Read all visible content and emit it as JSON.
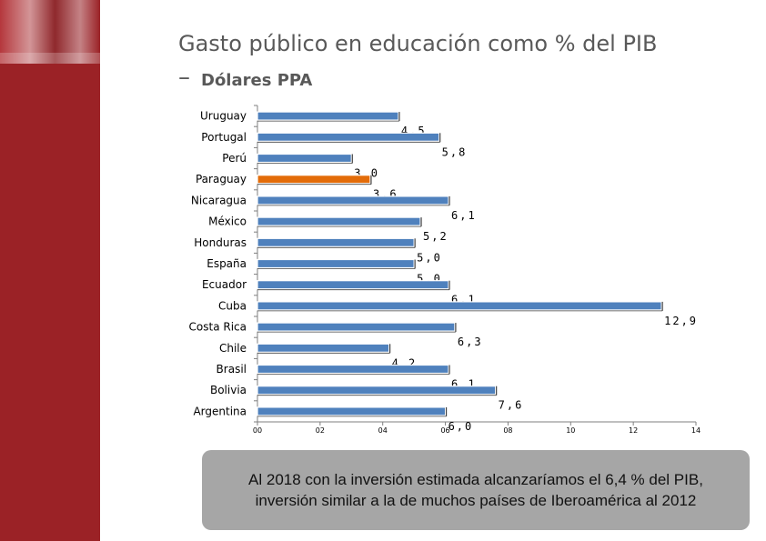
{
  "slide": {
    "title": "Gasto público en educación como % del PIB",
    "subtitle_dash": "–",
    "subtitle": "Dólares PPA"
  },
  "chart_data": {
    "type": "bar",
    "orientation": "horizontal",
    "categories": [
      "Uruguay",
      "Portugal",
      "Perú",
      "Paraguay",
      "Nicaragua",
      "México",
      "Honduras",
      "España",
      "Ecuador",
      "Cuba",
      "Costa Rica",
      "Chile",
      "Brasil",
      "Bolivia",
      "Argentina"
    ],
    "values": [
      4.5,
      5.8,
      3.0,
      3.6,
      6.1,
      5.2,
      5.0,
      5.0,
      6.1,
      12.9,
      6.3,
      4.2,
      6.1,
      7.6,
      6.0
    ],
    "value_labels": [
      "4,5",
      "5,8",
      "3,0",
      "3,6",
      "6,1",
      "5,2",
      "5,0",
      "5,0",
      "6,1",
      "12,9",
      "6,3",
      "4,2",
      "6,1",
      "7,6",
      "6,0"
    ],
    "highlight": "Paraguay",
    "x_ticks": [
      0,
      2,
      4,
      6,
      8,
      10,
      12,
      14
    ],
    "x_tick_labels": [
      "00",
      "02",
      "04",
      "06",
      "08",
      "10",
      "12",
      "14"
    ],
    "xlim": [
      0,
      14
    ],
    "colors": {
      "bar": "#4f81bd",
      "highlight": "#e36c09"
    }
  },
  "note": {
    "text": "Al 2018 con la inversión estimada alcanzaríamos el 6,4 % del PIB, inversión similar a la de muchos países de Iberoamérica al 2012"
  }
}
